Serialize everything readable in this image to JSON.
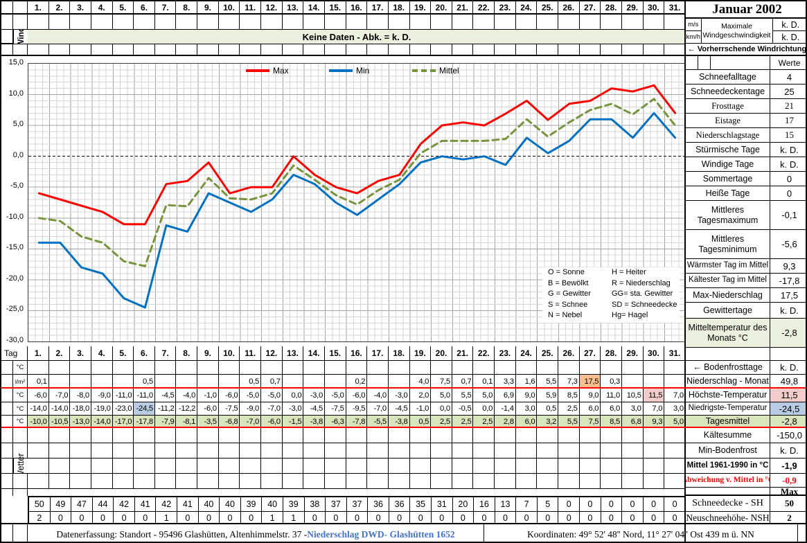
{
  "month_title": "Januar 2002",
  "days": [
    "1.",
    "2.",
    "3.",
    "4.",
    "5.",
    "6.",
    "7.",
    "8.",
    "9.",
    "10.",
    "11.",
    "12.",
    "13.",
    "14.",
    "15.",
    "16.",
    "17.",
    "18.",
    "19.",
    "20.",
    "21.",
    "22.",
    "23.",
    "24.",
    "25.",
    "26.",
    "27.",
    "28.",
    "29.",
    "30.",
    "31."
  ],
  "top": {
    "wind_label": "Wind",
    "keine_daten": "Keine Daten - Abk. = k. D."
  },
  "chart_data": {
    "type": "line",
    "title": "",
    "xlabel": "Tag",
    "ylabel": "",
    "x": [
      1,
      2,
      3,
      4,
      5,
      6,
      7,
      8,
      9,
      10,
      11,
      12,
      13,
      14,
      15,
      16,
      17,
      18,
      19,
      20,
      21,
      22,
      23,
      24,
      25,
      26,
      27,
      28,
      29,
      30,
      31
    ],
    "ylim": [
      -30,
      15
    ],
    "ytick_step": 5,
    "grid": true,
    "legend_position": "top-inside",
    "y_tick_labels": [
      "15,0",
      "10,0",
      "5,0",
      "0,0",
      "-5,0",
      "-10,0",
      "-15,0",
      "-20,0",
      "-25,0",
      "-30,0"
    ],
    "series": [
      {
        "name": "Max",
        "color": "#FF0000",
        "dash": "solid",
        "values": [
          -6.0,
          -7.0,
          -8.0,
          -9.0,
          -11.0,
          -11.0,
          -4.5,
          -4.0,
          -1.0,
          -6.0,
          -5.0,
          -5.0,
          0.0,
          -3.0,
          -5.0,
          -6.0,
          -4.0,
          -3.0,
          2.0,
          5.0,
          5.5,
          5.0,
          6.9,
          9.0,
          5.9,
          8.5,
          9.0,
          11.0,
          10.5,
          11.5,
          7.0
        ]
      },
      {
        "name": "Min",
        "color": "#0070C0",
        "dash": "solid",
        "values": [
          -14.0,
          -14.0,
          -18.0,
          -19.0,
          -23.0,
          -24.5,
          -11.2,
          -12.2,
          -6.0,
          -7.5,
          -9.0,
          -7.0,
          -3.0,
          -4.5,
          -7.5,
          -9.5,
          -7.0,
          -4.5,
          -1.0,
          0.0,
          -0.5,
          0.0,
          -1.4,
          3.0,
          0.5,
          2.5,
          6.0,
          6.0,
          3.0,
          7.0,
          3.0
        ]
      },
      {
        "name": "Mittel",
        "color": "#77933C",
        "dash": "dashed",
        "values": [
          -10.0,
          -10.5,
          -13.0,
          -14.0,
          -17.0,
          -17.8,
          -7.9,
          -8.1,
          -3.5,
          -6.8,
          -7.0,
          -6.0,
          -1.5,
          -3.8,
          -6.3,
          -7.8,
          -5.5,
          -3.8,
          0.5,
          2.5,
          2.5,
          2.5,
          2.8,
          6.0,
          3.2,
          5.5,
          7.5,
          8.5,
          6.8,
          9.3,
          5.0
        ]
      }
    ]
  },
  "codes_legend": {
    "col1": [
      "O = Sonne",
      "B = Bewölkt",
      "G = Gewitter",
      "S = Schnee",
      "N = Nebel"
    ],
    "col2": [
      "H = Heiter",
      "R = Niederschlag",
      "GG= sta. Gewitter",
      "SD = Schneedecke",
      "Hg= Hagel"
    ]
  },
  "table": {
    "tag_label": "Tag",
    "wetter_label": "Wetter",
    "rows": {
      "tag": {
        "unit_label": "Tag"
      },
      "bodenfrost": {
        "unit_label": "°C",
        "values": [
          "",
          "",
          "",
          "",
          "",
          "",
          "",
          "",
          "",
          "",
          "",
          "",
          "",
          "",
          "",
          "",
          "",
          "",
          "",
          "",
          "",
          "",
          "",
          "",
          "",
          "",
          "",
          "",
          "",
          "",
          ""
        ]
      },
      "niederschlag": {
        "unit_label": "l/m²",
        "highlight_day": 27,
        "highlight_color": "#FABF8F",
        "values": [
          "0,1",
          "",
          "",
          "",
          "",
          "0,5",
          "",
          "",
          "",
          "",
          "0,5",
          "0,7",
          "",
          "",
          "",
          "0,2",
          "",
          "",
          "4,0",
          "7,5",
          "0,7",
          "0,1",
          "3,3",
          "1,6",
          "5,5",
          "7,3",
          "17,5",
          "0,3",
          "",
          "",
          ""
        ]
      },
      "tmax": {
        "unit_label": "°C",
        "highlight_day": 30,
        "highlight_color": "#F2CBCB",
        "values": [
          "-6,0",
          "-7,0",
          "-8,0",
          "-9,0",
          "-11,0",
          "-11,0",
          "-4,5",
          "-4,0",
          "-1,0",
          "-6,0",
          "-5,0",
          "-5,0",
          "0,0",
          "-3,0",
          "-5,0",
          "-6,0",
          "-4,0",
          "-3,0",
          "2,0",
          "5,0",
          "5,5",
          "5,0",
          "6,9",
          "9,0",
          "5,9",
          "8,5",
          "9,0",
          "11,0",
          "10,5",
          "11,5",
          "7,0"
        ]
      },
      "tmin": {
        "unit_label": "°C",
        "highlight_day": 6,
        "highlight_color": "#B8CCE4",
        "values": [
          "-14,0",
          "-14,0",
          "-18,0",
          "-19,0",
          "-23,0",
          "-24,5",
          "-11,2",
          "-12,2",
          "-6,0",
          "-7,5",
          "-9,0",
          "-7,0",
          "-3,0",
          "-4,5",
          "-7,5",
          "-9,5",
          "-7,0",
          "-4,5",
          "-1,0",
          "0,0",
          "-0,5",
          "0,0",
          "-1,4",
          "3,0",
          "0,5",
          "2,5",
          "6,0",
          "6,0",
          "3,0",
          "7,0",
          "3,0"
        ]
      },
      "tmittel": {
        "unit_label": "°C",
        "row_bg": "#D8E4BC",
        "values": [
          "-10,0",
          "-10,5",
          "-13,0",
          "-14,0",
          "-17,0",
          "-17,8",
          "-7,9",
          "-8,1",
          "-3,5",
          "-6,8",
          "-7,0",
          "-6,0",
          "-1,5",
          "-3,8",
          "-6,3",
          "-7,8",
          "-5,5",
          "-3,8",
          "0,5",
          "2,5",
          "2,5",
          "2,5",
          "2,8",
          "6,0",
          "3,2",
          "5,5",
          "7,5",
          "8,5",
          "6,8",
          "9,3",
          "5,0"
        ]
      },
      "schneedecke": {
        "unit_label": "",
        "values": [
          "50",
          "49",
          "47",
          "44",
          "42",
          "41",
          "42",
          "41",
          "40",
          "40",
          "39",
          "40",
          "39",
          "38",
          "37",
          "37",
          "36",
          "36",
          "35",
          "31",
          "20",
          "16",
          "13",
          "7",
          "5",
          "0",
          "0",
          "0",
          "0",
          "0",
          "0"
        ]
      },
      "neuschnee": {
        "unit_label": "",
        "values": [
          "2",
          "0",
          "0",
          "0",
          "0",
          "0",
          "1",
          "0",
          "0",
          "0",
          "0",
          "1",
          "1",
          "0",
          "0",
          "0",
          "0",
          "0",
          "0",
          "0",
          "0",
          "0",
          "0",
          "0",
          "0",
          "0",
          "0",
          "0",
          "0",
          "0",
          "0"
        ]
      }
    }
  },
  "right_panel": {
    "title": "Januar 2002",
    "wind": {
      "unit1": "m/s",
      "unit2": "km/h",
      "label": "Maximale Windgeschwindigkeit",
      "value1": "k. D.",
      "value2": "k. D."
    },
    "direction_label": "←  Vorherrschende Windrichtung",
    "werte_header": "Werte",
    "stats": [
      {
        "key": "schneefalltage",
        "label": "Schneefalltage",
        "value": "4"
      },
      {
        "key": "schneedeckentage",
        "label": "Schneedeckentage",
        "value": "25"
      },
      {
        "key": "frosttage",
        "label": "Frosttage",
        "value": "21"
      },
      {
        "key": "eistage",
        "label": "Eistage",
        "value": "17"
      },
      {
        "key": "niederschlagstage",
        "label": "Niederschlagstage",
        "value": "15"
      },
      {
        "key": "stuermische",
        "label": "Stürmische Tage",
        "value": "k. D."
      },
      {
        "key": "windige",
        "label": "Windige Tage",
        "value": "k. D."
      },
      {
        "key": "sommertage",
        "label": "Sommertage",
        "value": "0"
      },
      {
        "key": "heisse",
        "label": "Heiße Tage",
        "value": "0"
      },
      {
        "key": "mitt_tmax",
        "label": "Mittleres Tagesmaximum",
        "value": "-0,1"
      },
      {
        "key": "mitt_tmin",
        "label": "Mittleres Tagesminimum",
        "value": "-5,6"
      },
      {
        "key": "waermster",
        "label": "Wärmster Tag im Mittel",
        "value": "9,3"
      },
      {
        "key": "kaeltester",
        "label": "Kältester Tag im Mittel",
        "value": "-17,8"
      },
      {
        "key": "maxnieder",
        "label": "Max-Niederschlag",
        "value": "17,5"
      },
      {
        "key": "gewittertage",
        "label": "Gewittertage",
        "value": "k. D."
      },
      {
        "key": "mitteltemp",
        "label": "Mitteltemperatur des Monats °C",
        "value": "-2,8"
      }
    ],
    "bottom": [
      {
        "key": "spacer",
        "label": "",
        "value": ""
      },
      {
        "key": "bodenfrost",
        "label": "← Bodenfrosttage",
        "value": "k. D."
      },
      {
        "key": "niederschlag_monat",
        "label": "Niederschlag - Monat",
        "value": "49,8"
      },
      {
        "key": "hoechste",
        "label": "Höchste-Temperatur",
        "value": "11,5"
      },
      {
        "key": "niedrigste",
        "label": "Niedrigste-Temperatur",
        "value": "-24,5"
      },
      {
        "key": "tagesmittel",
        "label": "Tagesmittel",
        "value": "-2,8"
      },
      {
        "key": "kaeltesumme",
        "label": "Kältesumme",
        "value": "-150,0"
      },
      {
        "key": "minbodenfrost",
        "label": "Min-Bodenfrost",
        "value": "k. D."
      },
      {
        "key": "mittel6190",
        "label": "Mittel 1961-1990 in °C",
        "value": "-1,9"
      },
      {
        "key": "abweichung",
        "label": "Abweichung v. Mittel in °C",
        "value": "-0,9"
      },
      {
        "key": "maxheader",
        "label": "",
        "value": "Max"
      },
      {
        "key": "schneedecke_sh",
        "label": "Schneedecke -   SH",
        "value": "50"
      },
      {
        "key": "neuschnee_nsh",
        "label": "Neuschneehöhe- NSH",
        "value": "2"
      }
    ]
  },
  "footer": {
    "left_prefix": "Datenerfassung:  Standort -  95496  Glashütten, Altenhimmelstr. 37 - ",
    "left_link": "Niederschlag DWD- Glashütten 1652",
    "right": "Koordinaten:  49° 52' 48'' Nord,   11° 27' 04'' Ost   439 m ü. NN"
  },
  "colors": {
    "max_line": "#FF0000",
    "min_line": "#0070C0",
    "mittel_line": "#77933C",
    "green_light": "#EBF1DE",
    "green_mid": "#D8E4BC",
    "highlight_orange": "#FABF8F",
    "highlight_pink": "#F2CBCB",
    "highlight_blue": "#B8CCE4",
    "link_blue": "#4472C4"
  }
}
